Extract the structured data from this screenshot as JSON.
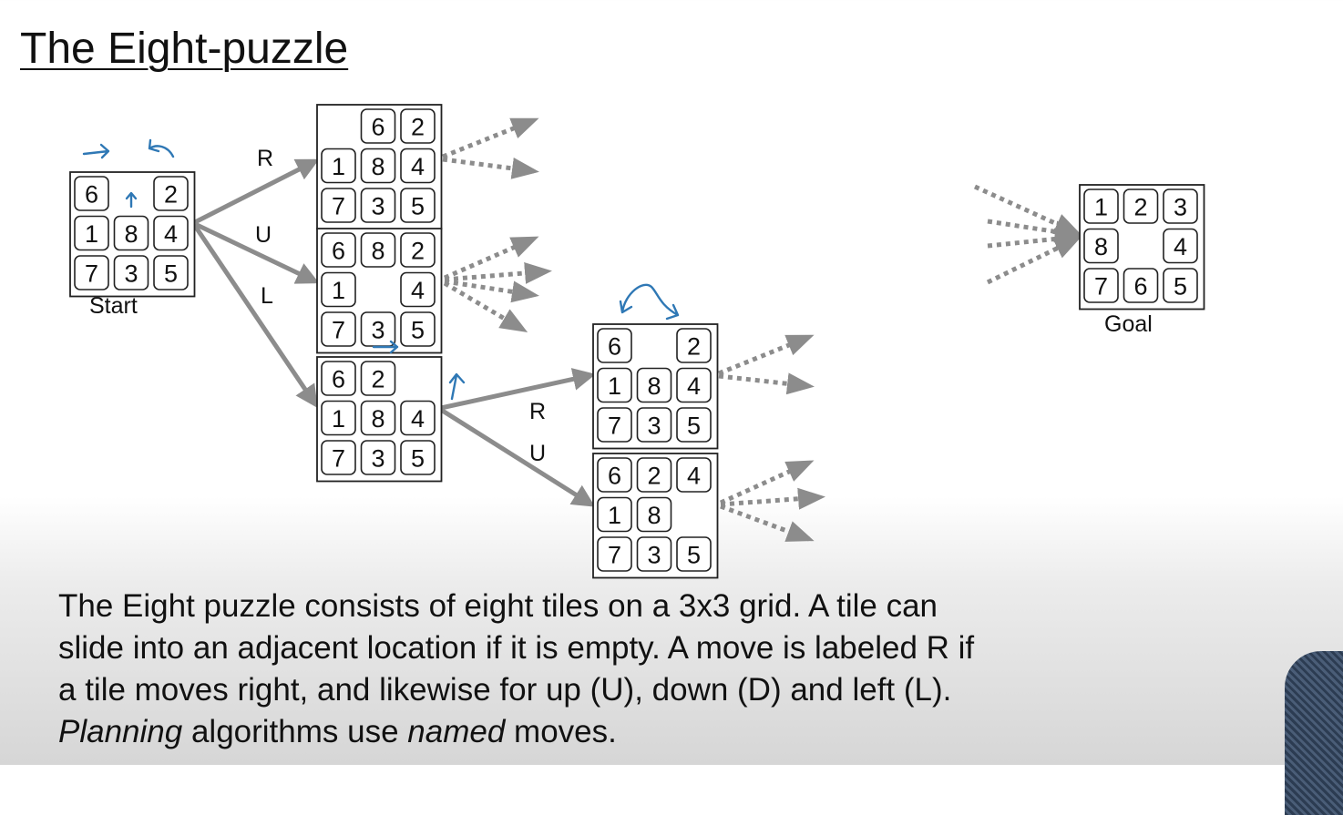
{
  "title": "The Eight-puzzle",
  "labels": {
    "start": "Start",
    "goal": "Goal"
  },
  "moves": {
    "r1": "R",
    "u1": "U",
    "l1": "L",
    "r2": "R",
    "u2": "U"
  },
  "boards": {
    "start": [
      [
        "6",
        "",
        "2"
      ],
      [
        "1",
        "8",
        "4"
      ],
      [
        "7",
        "3",
        "5"
      ]
    ],
    "after_r": [
      [
        "",
        "6",
        "2"
      ],
      [
        "1",
        "8",
        "4"
      ],
      [
        "7",
        "3",
        "5"
      ]
    ],
    "after_u": [
      [
        "6",
        "8",
        "2"
      ],
      [
        "1",
        "",
        "4"
      ],
      [
        "7",
        "3",
        "5"
      ]
    ],
    "after_l": [
      [
        "6",
        "2",
        ""
      ],
      [
        "1",
        "8",
        "4"
      ],
      [
        "7",
        "3",
        "5"
      ]
    ],
    "after_lr": [
      [
        "6",
        "",
        "2"
      ],
      [
        "1",
        "8",
        "4"
      ],
      [
        "7",
        "3",
        "5"
      ]
    ],
    "after_lu": [
      [
        "6",
        "2",
        "4"
      ],
      [
        "1",
        "8",
        ""
      ],
      [
        "7",
        "3",
        "5"
      ]
    ],
    "goal": [
      [
        "1",
        "2",
        "3"
      ],
      [
        "8",
        "",
        "4"
      ],
      [
        "7",
        "6",
        "5"
      ]
    ]
  },
  "description": {
    "text1": "The Eight puzzle consists of eight tiles on a 3x3 grid. A tile can slide into an adjacent location if it is empty. A move is labeled R if a tile moves right, and likewise for up (U), down (D) and left (L). ",
    "em1": "Planning",
    "text2": " algorithms use ",
    "em2": "named",
    "text3": " moves."
  },
  "colors": {
    "arrow": "#8c8c8c",
    "annotation": "#2f78b5",
    "tile_border": "#222222"
  }
}
